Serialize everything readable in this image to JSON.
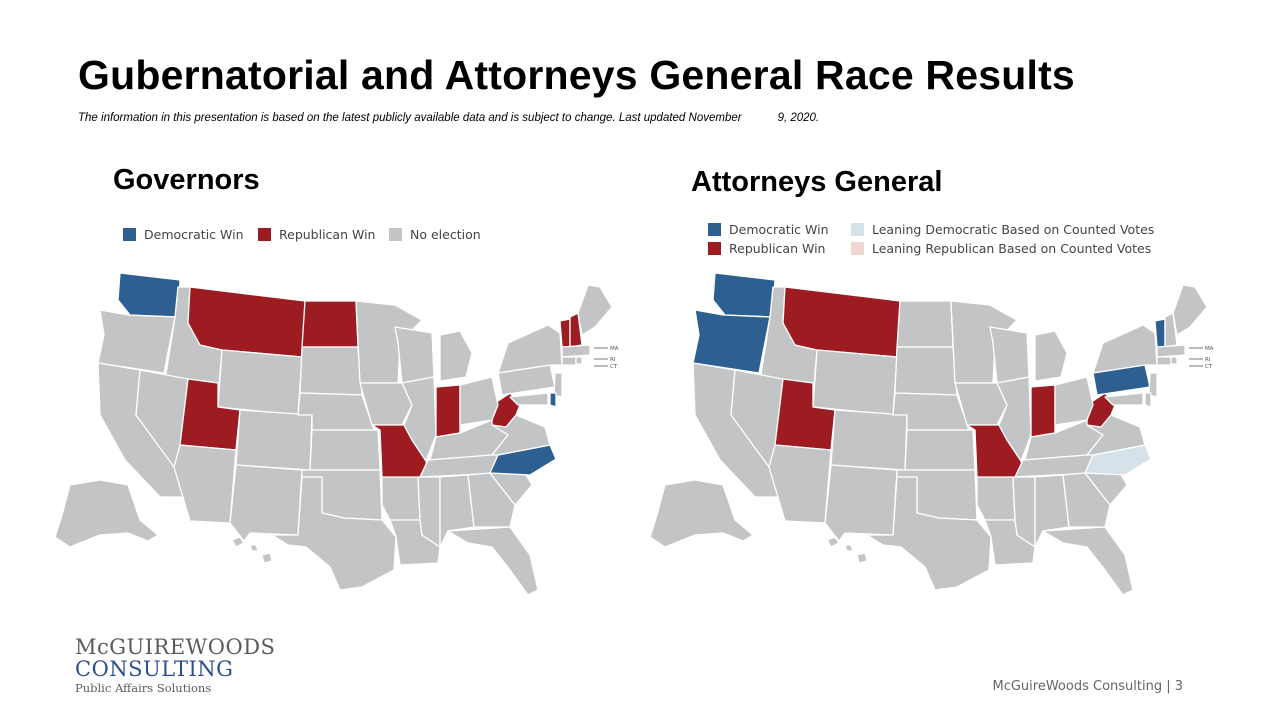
{
  "slide": {
    "title": "Gubernatorial and Attorneys General Race Results",
    "disclaimer_main": "The information in this presentation is based on the latest publicly available data and is subject to change. Last updated November",
    "disclaimer_date": "9, 2020.",
    "footer": "McGuireWoods Consulting | 3"
  },
  "logo": {
    "line1": "McGUIREWOODS",
    "line2": "CONSULTING",
    "tagline": "Public Affairs Solutions"
  },
  "colors": {
    "democratic": "#2d5f91",
    "republican": "#9c1c22",
    "no_election": "#c2c4c5",
    "leaning_democratic": "#d6e2ea",
    "leaning_republican": "#eed8d3"
  },
  "governors": {
    "title": "Governors",
    "legend": [
      {
        "label": "Democratic Win",
        "key": "democratic"
      },
      {
        "label": "Republican Win",
        "key": "republican"
      },
      {
        "label": "No election",
        "key": "no_election"
      }
    ],
    "results": {
      "WA": "democratic",
      "NC": "democratic",
      "DE": "democratic",
      "MT": "republican",
      "ND": "republican",
      "UT": "republican",
      "MO": "republican",
      "IN": "republican",
      "WV": "republican",
      "VT": "republican",
      "NH": "republican"
    },
    "labels": [
      "MA",
      "RI",
      "CT"
    ]
  },
  "attorneys_general": {
    "title": "Attorneys General",
    "legend": [
      {
        "label": "Democratic Win",
        "key": "democratic"
      },
      {
        "label": "Republican Win",
        "key": "republican"
      },
      {
        "label": "Leaning Democratic Based on Counted Votes",
        "key": "leaning_democratic"
      },
      {
        "label": "Leaning Republican Based on Counted Votes",
        "key": "leaning_republican"
      }
    ],
    "results": {
      "WA": "democratic",
      "OR": "democratic",
      "PA": "democratic",
      "VT": "democratic",
      "MT": "republican",
      "UT": "republican",
      "MO": "republican",
      "IN": "republican",
      "WV": "republican",
      "NC": "leaning_democratic"
    },
    "labels": [
      "MA",
      "RI",
      "CT"
    ]
  }
}
